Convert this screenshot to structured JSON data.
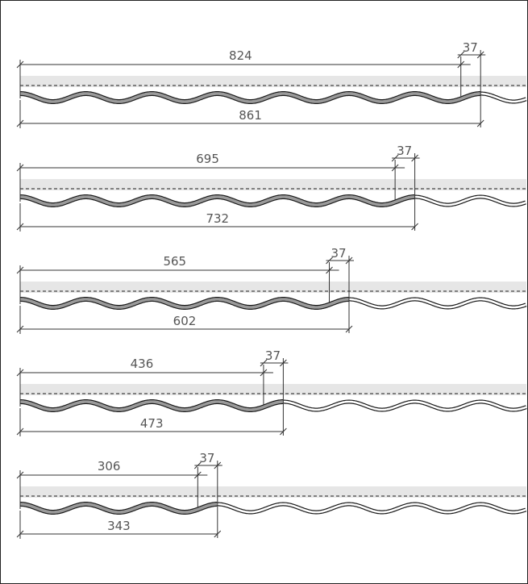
{
  "colors": {
    "band": "#e6e6e6",
    "sheet_fill": "#9a9a9a",
    "sheet_outline": "#1a1a1a",
    "adjacent_fill": "#ffffff",
    "dim_line": "#333333",
    "dim_text": "#555555"
  },
  "diagram": {
    "rows": [
      {
        "cover_label": "824",
        "overlap_label": "37",
        "total_label": "861",
        "cover_waves": 6.7,
        "total_waves": 7
      },
      {
        "cover_label": "695",
        "overlap_label": "37",
        "total_label": "732",
        "cover_waves": 5.7,
        "total_waves": 6
      },
      {
        "cover_label": "565",
        "overlap_label": "37",
        "total_label": "602",
        "cover_waves": 4.7,
        "total_waves": 5
      },
      {
        "cover_label": "436",
        "overlap_label": "37",
        "total_label": "473",
        "cover_waves": 3.7,
        "total_waves": 4
      },
      {
        "cover_label": "306",
        "overlap_label": "37",
        "total_label": "343",
        "cover_waves": 2.7,
        "total_waves": 3
      }
    ]
  }
}
